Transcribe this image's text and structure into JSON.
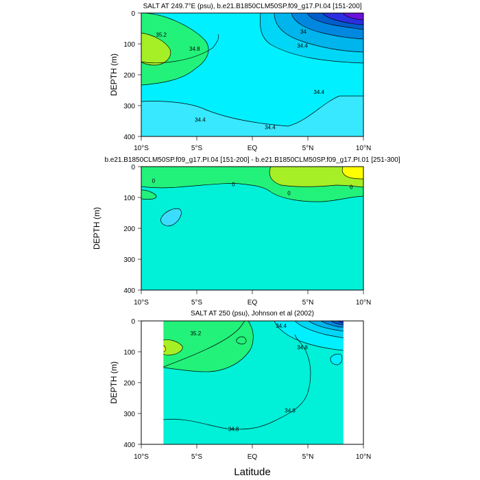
{
  "x_axis": {
    "label": "Latitude",
    "ticks": [
      {
        "value": -10,
        "label": "10°S"
      },
      {
        "value": -5,
        "label": "5°S"
      },
      {
        "value": 0,
        "label": "EQ"
      },
      {
        "value": 5,
        "label": "5°N"
      },
      {
        "value": 10,
        "label": "10°N"
      }
    ]
  },
  "chart_data": [
    {
      "type": "heatmap",
      "title": "SALT AT 249.7°E (psu), b.e21.B1850CLM50SP.f09_g17.PI.04 [151-200]",
      "xlabel": "Latitude",
      "ylabel": "DEPTH (m)",
      "xlim": [
        -10,
        10
      ],
      "ylim": [
        0,
        400
      ],
      "y_reversed": true,
      "yticks": [
        0,
        100,
        200,
        300,
        400
      ],
      "colors": {
        "background": "#00f0ff",
        "deep": "#38e8ff",
        "high": "#22f27a",
        "max": "#a6ee26",
        "fresh1": "#00d6f6",
        "fresh2": "#00b4ec",
        "fresh3": "#0088e0",
        "fresh4": "#005ecc",
        "fresh5": "#2c2ee0",
        "fresh6": "#6a10dc"
      },
      "contour_labels": [
        {
          "text": "35.2",
          "x": -8.2,
          "y": 70
        },
        {
          "text": "34.8",
          "x": -5.2,
          "y": 115
        },
        {
          "text": "34",
          "x": 4.6,
          "y": 60
        },
        {
          "text": "34.4",
          "x": 4.5,
          "y": 105
        },
        {
          "text": "34.4",
          "x": 6.0,
          "y": 255
        },
        {
          "text": "34.4",
          "x": -4.7,
          "y": 345
        },
        {
          "text": "34.4",
          "x": 1.6,
          "y": 370
        }
      ]
    },
    {
      "type": "heatmap",
      "title": "b.e21.B1850CLM50SP.f09_g17.PI.04 [151-200] - b.e21.B1850CLM50SP.f09_g17.PI.01 [251-300]",
      "xlabel": "Latitude",
      "ylabel": "DEPTH (m)",
      "xlim": [
        -10,
        10
      ],
      "ylim": [
        0,
        400
      ],
      "y_reversed": true,
      "yticks": [
        0,
        100,
        200,
        300,
        400
      ],
      "colors": {
        "background": "#00f0d8",
        "pos1": "#22f27a",
        "pos2": "#a6ee26",
        "pos3": "#ffff00",
        "neg1": "#3cdcff"
      },
      "contour_labels": [
        {
          "text": "0",
          "x": -8.9,
          "y": 45
        },
        {
          "text": "0",
          "x": -1.7,
          "y": 57
        },
        {
          "text": "0",
          "x": 3.3,
          "y": 85
        },
        {
          "text": "0",
          "x": 8.9,
          "y": 65
        }
      ]
    },
    {
      "type": "heatmap",
      "title": "SALT AT 250 (psu), Johnson et al (2002)",
      "xlabel": "Latitude",
      "ylabel": "DEPTH (m)",
      "xlim": [
        -10,
        10
      ],
      "ylim": [
        0,
        400
      ],
      "y_reversed": true,
      "yticks": [
        0,
        100,
        200,
        300,
        400
      ],
      "data_xlim": [
        -8.1,
        8.1
      ],
      "colors": {
        "background": "#00f0d8",
        "mid": "#22f27a",
        "high": "#a6ee26",
        "max": "#ffff00",
        "fresh1": "#00f0ff",
        "fresh2": "#00d6f6",
        "fresh3": "#00b4ec",
        "fresh4": "#0088e0",
        "fresh5": "#005ecc",
        "fresh6": "#2c2ee0"
      },
      "contour_labels": [
        {
          "text": "35.2",
          "x": -5.1,
          "y": 40
        },
        {
          "text": "34.4",
          "x": 2.6,
          "y": 15
        },
        {
          "text": "34.8",
          "x": 4.5,
          "y": 85
        },
        {
          "text": "34.8",
          "x": 3.4,
          "y": 290
        },
        {
          "text": "34.8",
          "x": -1.7,
          "y": 350
        }
      ]
    }
  ]
}
